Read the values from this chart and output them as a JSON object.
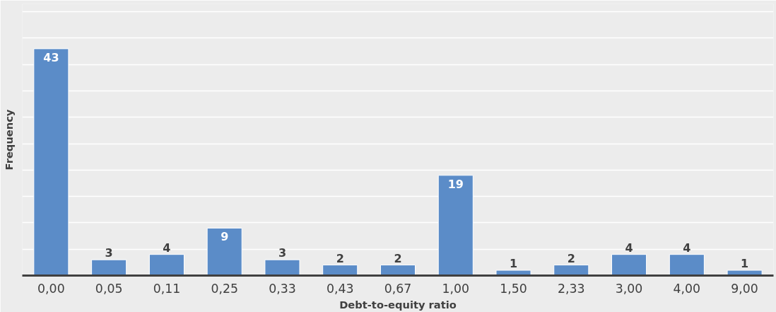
{
  "chart_data": {
    "type": "bar",
    "xlabel": "Debt-to-equity ratio",
    "ylabel": "Frequency",
    "categories": [
      "0,00",
      "0,05",
      "0,11",
      "0,25",
      "0,33",
      "0,43",
      "0,67",
      "1,00",
      "1,50",
      "2,33",
      "3,00",
      "4,00",
      "9,00"
    ],
    "values": [
      43,
      3,
      4,
      9,
      3,
      2,
      2,
      19,
      1,
      2,
      4,
      4,
      1
    ],
    "color": "#5b8cc8",
    "data_labels": true,
    "ylim": [
      0,
      51.5
    ],
    "yticks": [
      {
        "value": 0,
        "label": null
      },
      {
        "value": 5,
        "label": null
      },
      {
        "value": 10,
        "label": null
      },
      {
        "value": 15,
        "label": null
      },
      {
        "value": 20,
        "label": null
      },
      {
        "value": 25,
        "label": null
      },
      {
        "value": 30,
        "label": null
      },
      {
        "value": 35,
        "label": null
      },
      {
        "value": 40,
        "label": null
      },
      {
        "value": 45,
        "label": null
      },
      {
        "value": 50,
        "label": null
      }
    ],
    "grid": "y",
    "tick_labels": "x"
  }
}
